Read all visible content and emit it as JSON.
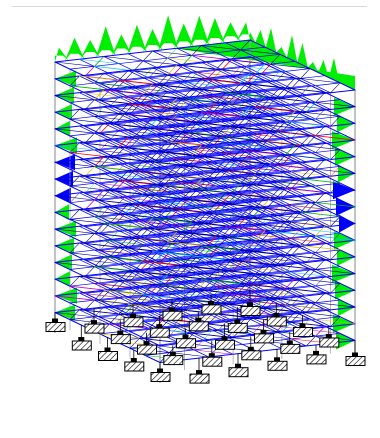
{
  "viewport": {
    "background": "#ffffff",
    "rule_color": "#d9d9d9"
  },
  "model": {
    "type": "3d-braced-frame-with-diagrid-floors",
    "storeys": 15,
    "bays_x": 8,
    "bays_y": 7,
    "colors": {
      "column": "#9a9aa8",
      "beam": "#0000ff",
      "brace_dark": "#000090",
      "brace_red": "#ff0000",
      "brace_magenta": "#c000c0",
      "brace_cyan": "#00c0ff",
      "brace_yellow": "#e0c000",
      "brace_green": "#00b000",
      "load_green": "#00ee00",
      "load_blue": "#0000ff",
      "support_fill": "#ffffff",
      "support_hatch": "#000000",
      "support_stem": "#000000"
    },
    "supports": {
      "symbol": "hatched-block",
      "count": 30
    }
  }
}
